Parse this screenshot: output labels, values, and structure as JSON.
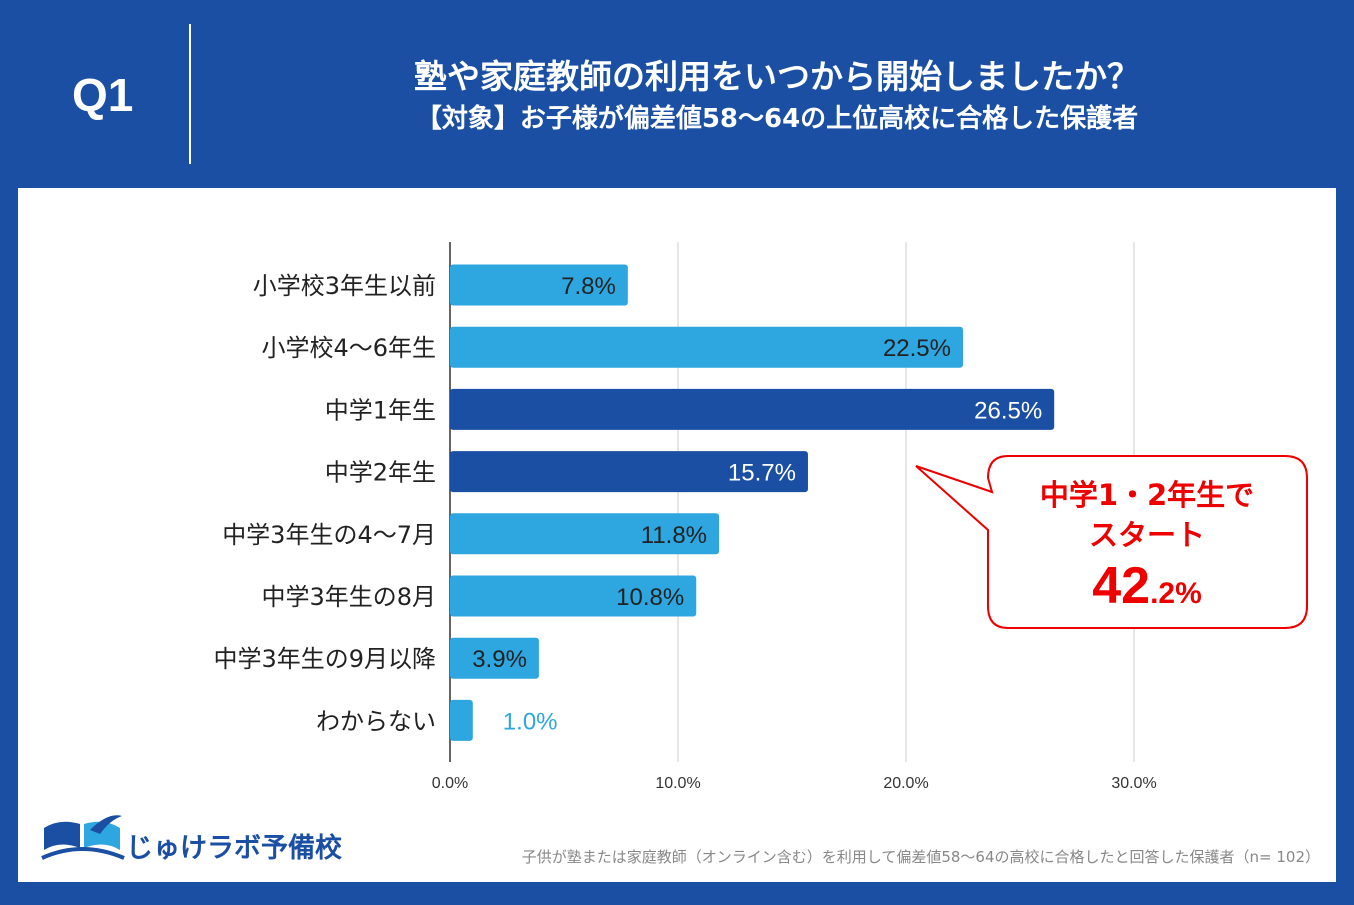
{
  "header": {
    "question_label": "Q1",
    "title": "塾や家庭教師の利用をいつから開始しましたか？",
    "subtitle": "【対象】お子様が偏差値58～64の上位高校に合格した保護者"
  },
  "chart_data": {
    "type": "bar",
    "orientation": "horizontal",
    "categories": [
      "小学校3年生以前",
      "小学校4～6年生",
      "中学1年生",
      "中学2年生",
      "中学3年生の4～7月",
      "中学3年生の8月",
      "中学3年生の9月以降",
      "わからない"
    ],
    "values": [
      7.8,
      22.5,
      26.5,
      15.7,
      11.8,
      10.8,
      3.9,
      1.0
    ],
    "data_labels": [
      "7.8%",
      "22.5%",
      "26.5%",
      "15.7%",
      "11.8%",
      "10.8%",
      "3.9%",
      "1.0%"
    ],
    "highlighted": [
      false,
      false,
      true,
      true,
      false,
      false,
      false,
      false
    ],
    "xlim": [
      0,
      30
    ],
    "xticks": [
      0,
      10,
      20,
      30
    ],
    "xtick_labels": [
      "0.0%",
      "10.0%",
      "20.0%",
      "30.0%"
    ],
    "grid": true,
    "colors": {
      "normal": "#2ea7e0",
      "highlight": "#1a4fa3",
      "label_dark": "#222222",
      "label_light": "#ffffff",
      "outside_label": "#2ea7e0"
    }
  },
  "callout": {
    "line1": "中学1・2年生で",
    "line2": "スタート",
    "value_main": "42",
    "value_small": ".2%"
  },
  "logo": {
    "text": "じゅけラボ予備校"
  },
  "footnote": "子供が塾または家庭教師（オンライン含む）を利用して偏差値58～64の高校に合格したと回答した保護者（n= 102）"
}
